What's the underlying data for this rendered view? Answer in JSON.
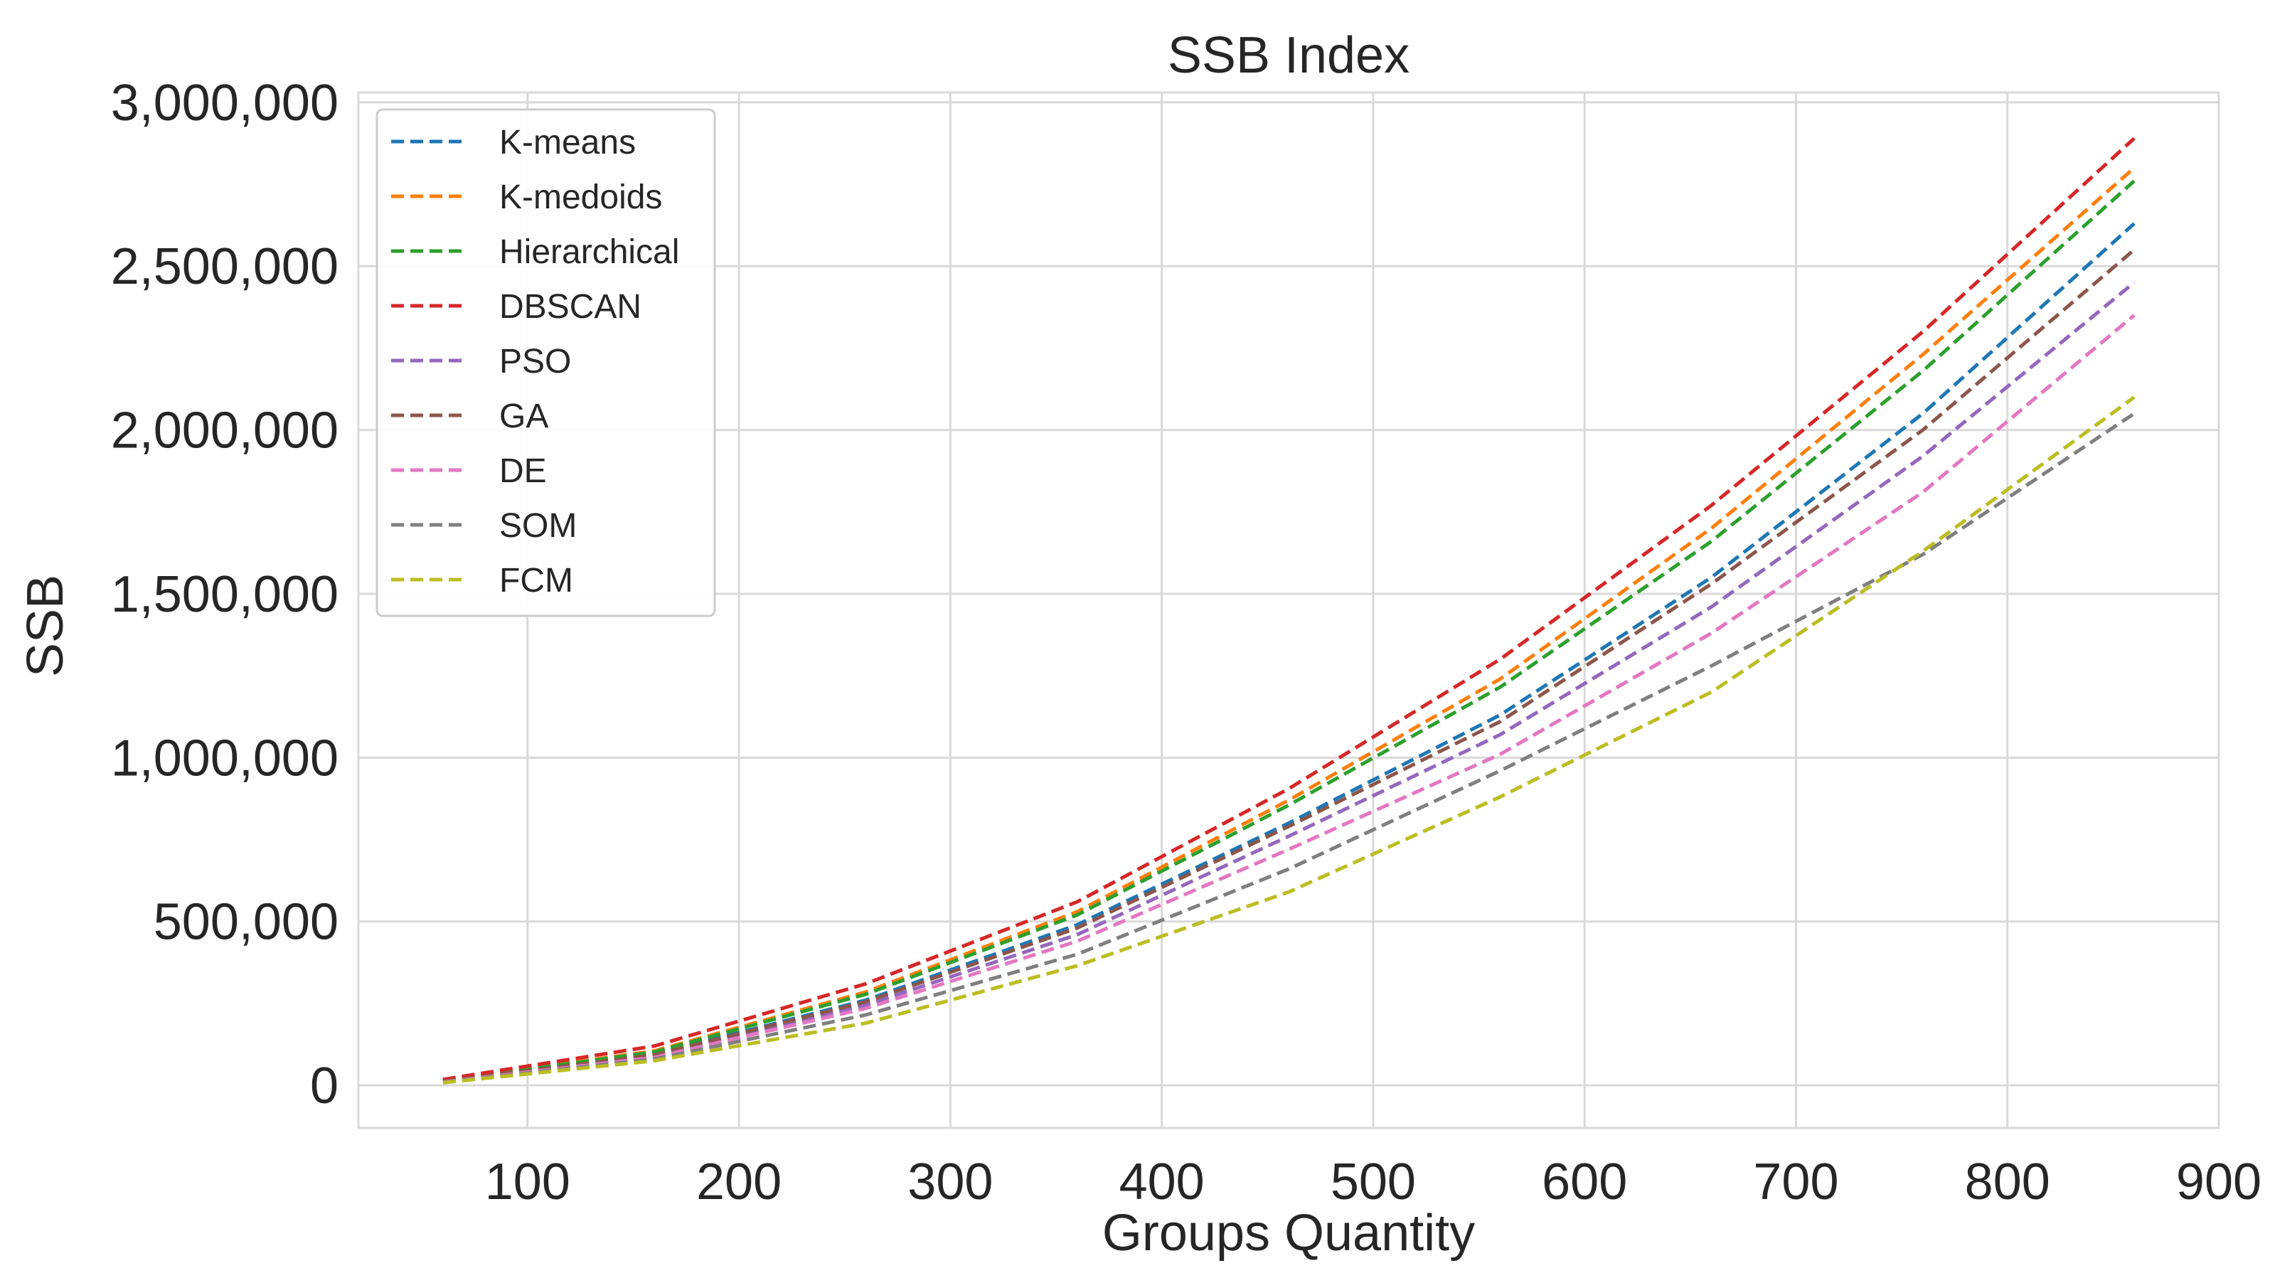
{
  "chart_data": {
    "type": "line",
    "title": "SSB Index",
    "xlabel": "Groups Quantity",
    "ylabel": "SSB",
    "xlim": [
      20,
      900
    ],
    "ylim": [
      -130000,
      3030000
    ],
    "x_ticks": [
      100,
      200,
      300,
      400,
      500,
      600,
      700,
      800,
      900
    ],
    "x_tick_labels": [
      "100",
      "200",
      "300",
      "400",
      "500",
      "600",
      "700",
      "800",
      "900"
    ],
    "y_ticks": [
      0,
      500000,
      1000000,
      1500000,
      2000000,
      2500000,
      3000000
    ],
    "y_tick_labels": [
      "0",
      "500,000",
      "1,000,000",
      "1,500,000",
      "2,000,000",
      "2,500,000",
      "3,000,000"
    ],
    "grid": true,
    "line_style": "dashed",
    "legend_position": "upper-left",
    "x": [
      60,
      160,
      260,
      360,
      460,
      560,
      660,
      760,
      860
    ],
    "series": [
      {
        "name": "K-means",
        "color": "#1f77b4",
        "values": [
          12000,
          95000,
          260000,
          490000,
          800000,
          1130000,
          1550000,
          2050000,
          2630000
        ]
      },
      {
        "name": "K-medoids",
        "color": "#ff7f0e",
        "values": [
          15000,
          105000,
          285000,
          530000,
          870000,
          1240000,
          1700000,
          2230000,
          2800000
        ]
      },
      {
        "name": "Hierarchical",
        "color": "#2ca02c",
        "values": [
          14000,
          102000,
          278000,
          520000,
          855000,
          1215000,
          1660000,
          2180000,
          2760000
        ]
      },
      {
        "name": "DBSCAN",
        "color": "#d62728",
        "values": [
          18000,
          120000,
          310000,
          560000,
          905000,
          1300000,
          1770000,
          2300000,
          2890000
        ]
      },
      {
        "name": "PSO",
        "color": "#9467bd",
        "values": [
          11000,
          90000,
          245000,
          460000,
          760000,
          1070000,
          1460000,
          1920000,
          2450000
        ]
      },
      {
        "name": "GA",
        "color": "#8c564b",
        "values": [
          12000,
          93000,
          255000,
          480000,
          790000,
          1110000,
          1530000,
          2000000,
          2550000
        ]
      },
      {
        "name": "DE",
        "color": "#e377c2",
        "values": [
          10000,
          85000,
          235000,
          440000,
          720000,
          1010000,
          1380000,
          1810000,
          2350000
        ]
      },
      {
        "name": "SOM",
        "color": "#7f7f7f",
        "values": [
          9000,
          80000,
          215000,
          400000,
          660000,
          960000,
          1280000,
          1620000,
          2050000
        ]
      },
      {
        "name": "FCM",
        "color": "#bcbd22",
        "values": [
          8000,
          75000,
          190000,
          365000,
          590000,
          880000,
          1200000,
          1630000,
          2100000
        ]
      }
    ]
  },
  "colors": {
    "background": "#ffffff",
    "grid": "#d9d9d9",
    "text": "#262626",
    "legend_border": "#cccccc"
  }
}
